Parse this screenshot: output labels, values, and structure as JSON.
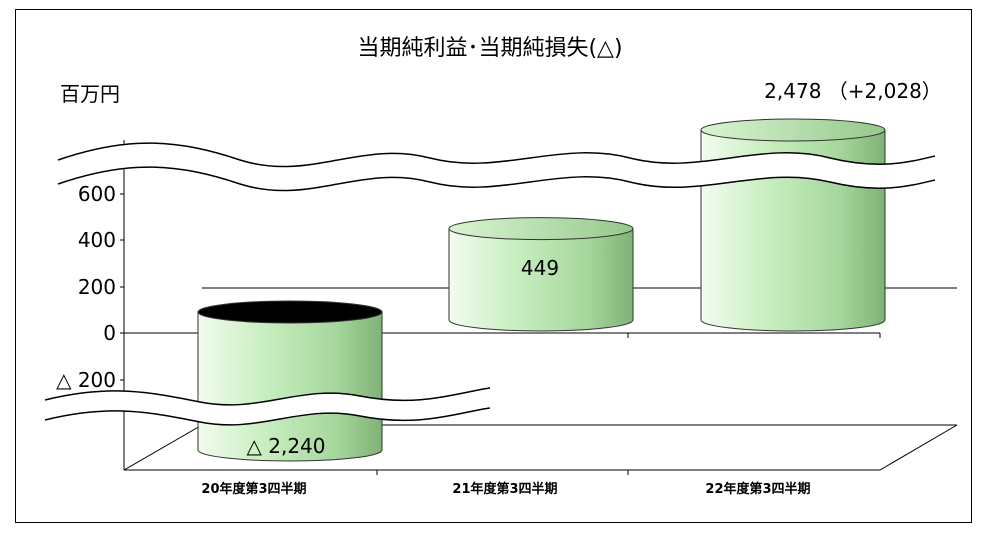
{
  "chart_data": {
    "type": "bar",
    "title": "当期純利益･当期純損失(△)",
    "unit": "百万円",
    "categories": [
      "20年度第3四半期",
      "21年度第3四半期",
      "22年度第3四半期"
    ],
    "values": [
      -2240,
      449,
      2478
    ],
    "data_labels": [
      "△ 2,240",
      "449",
      "2,478 （+2,028）"
    ],
    "y_ticks": [
      {
        "value": 600,
        "label": "600"
      },
      {
        "value": 400,
        "label": "400"
      },
      {
        "value": 200,
        "label": "200"
      },
      {
        "value": 0,
        "label": "0"
      },
      {
        "value": -200,
        "label": "△ 200"
      }
    ],
    "axis_breaks": [
      "above 600",
      "below -200"
    ],
    "bar_color": "#c8eec0",
    "bar_top_color_positive": "#a9dba0",
    "bar_top_color_negative": "#000000"
  }
}
